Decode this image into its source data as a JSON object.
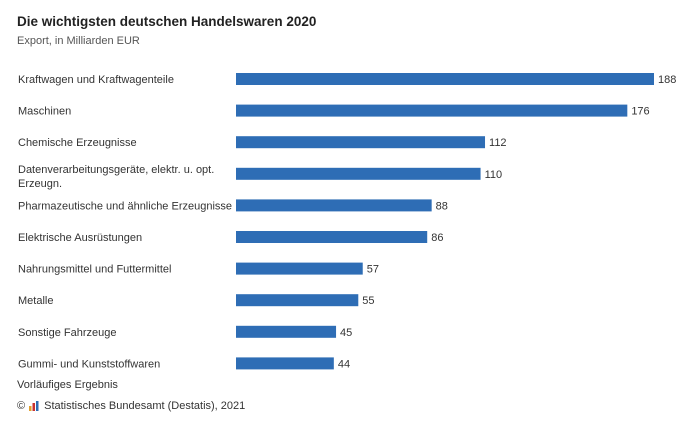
{
  "title": "Die wichtigsten deutschen Handelswaren 2020",
  "subtitle": "Export, in Milliarden EUR",
  "footnote": "Vorläufiges Ergebnis",
  "source": {
    "copyright_symbol": "©",
    "text": "Statistisches Bundesamt (Destatis), 2021",
    "logo_icon": "destatis-logo-icon"
  },
  "colors": {
    "bar": "#2e6db5",
    "logo_bars": [
      "#e0a030",
      "#c83232",
      "#2e6db5"
    ]
  },
  "chart_data": {
    "type": "bar",
    "orientation": "horizontal",
    "categories": [
      "Kraftwagen und Kraftwagenteile",
      "Maschinen",
      "Chemische Erzeugnisse",
      [
        "Datenverarbeitungsgeräte, elektr. u. opt.",
        "Erzeugn."
      ],
      "Pharmazeutische und ähnliche Erzeugnisse",
      "Elektrische Ausrüstungen",
      "Nahrungsmittel und Futtermittel",
      "Metalle",
      "Sonstige Fahrzeuge",
      "Gummi- und Kunststoffwaren"
    ],
    "values": [
      188,
      176,
      112,
      110,
      88,
      86,
      57,
      55,
      45,
      44
    ],
    "title": "Die wichtigsten deutschen Handelswaren 2020",
    "subtitle": "Export, in Milliarden EUR",
    "xlabel": "",
    "ylabel": "",
    "xlim": [
      0,
      188
    ],
    "grid": false,
    "legend": "none",
    "data_labels": true
  }
}
